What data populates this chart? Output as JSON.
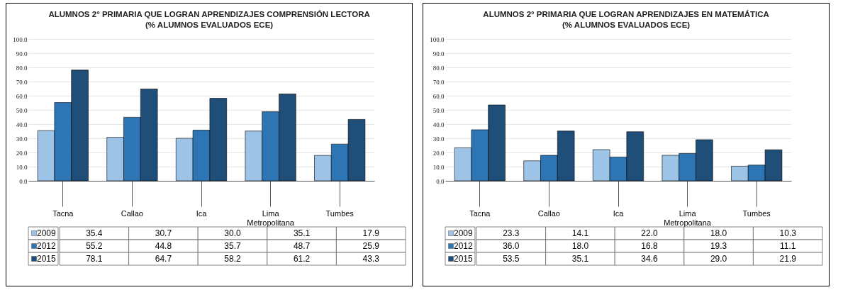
{
  "chart_data": [
    {
      "type": "bar",
      "title": "ALUMNOS 2° PRIMARIA QUE LOGRAN APRENDIZAJES COMPRENSIÓN LECTORA",
      "subtitle": "(% ALUMNOS EVALUADOS ECE)",
      "categories": [
        "Tacna",
        "Callao",
        "Ica",
        "Lima Metropolitana",
        "Tumbes"
      ],
      "ylim": [
        0,
        100
      ],
      "yticks": [
        {
          "value": 0,
          "label": "0.0"
        },
        {
          "value": 10,
          "label": "10.0"
        },
        {
          "value": 20,
          "label": "20.0"
        },
        {
          "value": 30,
          "label": "30.0"
        },
        {
          "value": 40,
          "label": "40.0"
        },
        {
          "value": 50,
          "label": "50.0"
        },
        {
          "value": 60,
          "label": "60.0"
        },
        {
          "value": 70,
          "label": "70.0"
        },
        {
          "value": 80,
          "label": "80.0"
        },
        {
          "value": 90,
          "label": "90.0"
        },
        {
          "value": 100,
          "label": "100.0"
        }
      ],
      "grid": "y",
      "legend": "bottom",
      "series": [
        {
          "name": "2009",
          "color": "#9dc3e6",
          "values": [
            35.4,
            30.7,
            30.0,
            35.1,
            17.9
          ],
          "value_labels": [
            "35.4",
            "30.7",
            "30.0",
            "35.1",
            "17.9"
          ]
        },
        {
          "name": "2012",
          "color": "#2e75b6",
          "values": [
            55.2,
            44.8,
            35.7,
            48.7,
            25.9
          ],
          "value_labels": [
            "55.2",
            "44.8",
            "35.7",
            "48.7",
            "25.9"
          ]
        },
        {
          "name": "2015",
          "color": "#1f4e79",
          "values": [
            78.1,
            64.7,
            58.2,
            61.2,
            43.3
          ],
          "value_labels": [
            "78.1",
            "64.7",
            "58.2",
            "61.2",
            "43.3"
          ]
        }
      ]
    },
    {
      "type": "bar",
      "title": "ALUMNOS 2° PRIMARIA QUE LOGRAN APRENDIZAJES EN MATEMÁTICA",
      "subtitle": "(% ALUMNOS EVALUADOS ECE)",
      "categories": [
        "Tacna",
        "Callao",
        "Ica",
        "Lima Metropolitana",
        "Tumbes"
      ],
      "ylim": [
        0,
        100
      ],
      "yticks": [
        {
          "value": 0,
          "label": "0.0"
        },
        {
          "value": 10,
          "label": "10.0"
        },
        {
          "value": 20,
          "label": "20.0"
        },
        {
          "value": 30,
          "label": "30.0"
        },
        {
          "value": 40,
          "label": "40.0"
        },
        {
          "value": 50,
          "label": "50.0"
        },
        {
          "value": 60,
          "label": "60.0"
        },
        {
          "value": 70,
          "label": "70.0"
        },
        {
          "value": 80,
          "label": "80.0"
        },
        {
          "value": 90,
          "label": "90.0"
        },
        {
          "value": 100,
          "label": "100.0"
        }
      ],
      "grid": "y",
      "legend": "bottom",
      "series": [
        {
          "name": "2009",
          "color": "#9dc3e6",
          "values": [
            23.3,
            14.1,
            22.0,
            18.0,
            10.3
          ],
          "value_labels": [
            "23.3",
            "14.1",
            "22.0",
            "18.0",
            "10.3"
          ]
        },
        {
          "name": "2012",
          "color": "#2e75b6",
          "values": [
            36.0,
            18.0,
            16.8,
            19.3,
            11.1
          ],
          "value_labels": [
            "36.0",
            "18.0",
            "16.8",
            "19.3",
            "11.1"
          ]
        },
        {
          "name": "2015",
          "color": "#1f4e79",
          "values": [
            53.5,
            35.1,
            34.6,
            29.0,
            21.9
          ],
          "value_labels": [
            "53.5",
            "35.1",
            "34.6",
            "29.0",
            "21.9"
          ]
        }
      ]
    }
  ]
}
